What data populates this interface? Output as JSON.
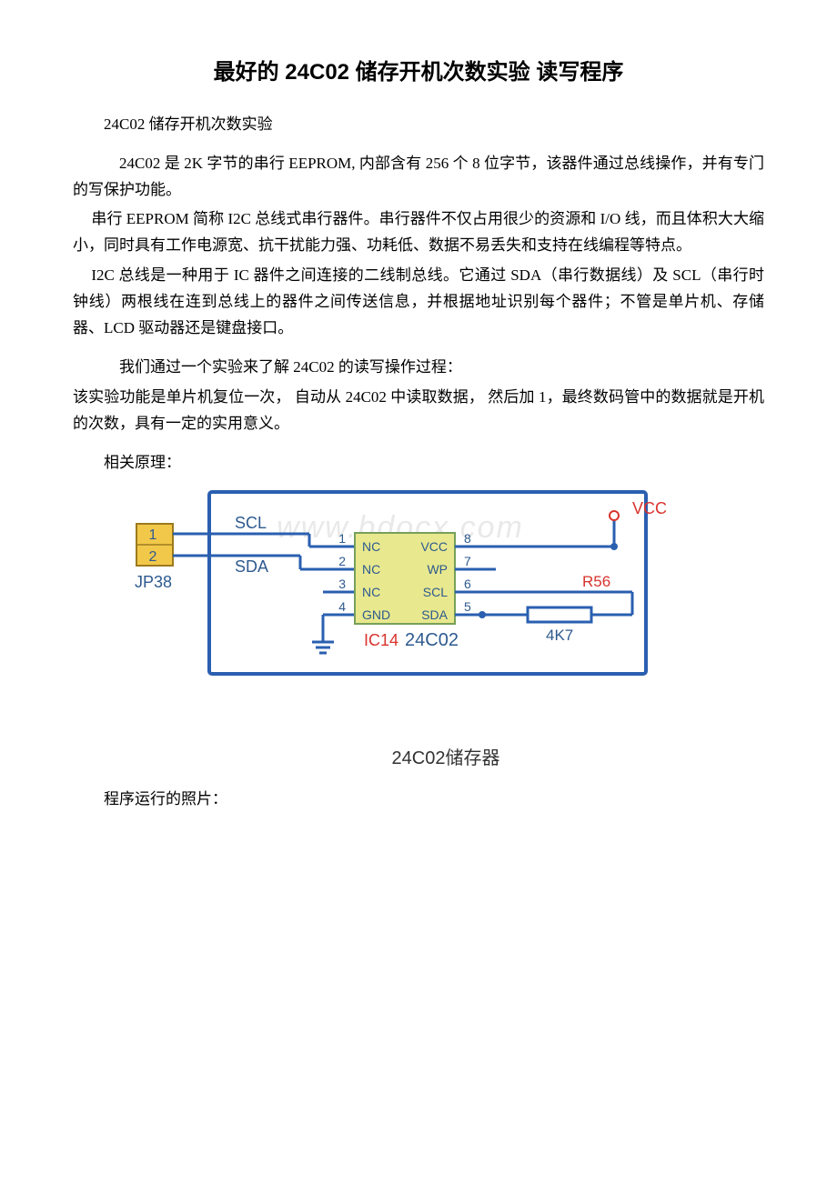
{
  "title": "最好的 24C02 储存开机次数实验 读写程序",
  "p1": "24C02 储存开机次数实验",
  "p2": "24C02 是 2K 字节的串行 EEPROM, 内部含有 256 个 8 位字节，该器件通过总线操作，并有专门的写保护功能。",
  "p3": "串行 EEPROM 简称 I2C 总线式串行器件。串行器件不仅占用很少的资源和 I/O 线，而且体积大大缩小，同时具有工作电源宽、抗干扰能力强、功耗低、数据不易丢失和支持在线编程等特点。",
  "p4": "I2C 总线是一种用于 IC 器件之间连接的二线制总线。它通过 SDA（串行数据线）及 SCL（串行时钟线）两根线在连到总线上的器件之间传送信息，并根据地址识别每个器件；不管是单片机、存储器、LCD 驱动器还是键盘接口。",
  "p5": "我们通过一个实验来了解 24C02 的读写操作过程：",
  "p6": "该实验功能是单片机复位一次， 自动从 24C02 中读取数据， 然后加 1，最终数码管中的数据就是开机的次数，具有一定的实用意义。",
  "p7": "相关原理：",
  "p8": "程序运行的照片：",
  "diagram": {
    "watermark": "www.bdocx.com",
    "caption": "24C02储存器",
    "connector": {
      "label": "JP38",
      "pin1": "1",
      "pin2": "2",
      "fill": "#f2c84b",
      "stroke": "#9c7a1e"
    },
    "lines": {
      "scl": "SCL",
      "sda": "SDA"
    },
    "ic": {
      "label_prefix": "IC14",
      "label_part": "24C02",
      "fill": "#e8e88e",
      "stroke": "#76a05a",
      "pins_left": [
        "NC",
        "NC",
        "NC",
        "GND"
      ],
      "pins_right": [
        "VCC",
        "WP",
        "SCL",
        "SDA"
      ],
      "pin_nums_left": [
        "1",
        "2",
        "3",
        "4"
      ],
      "pin_nums_right": [
        "8",
        "7",
        "6",
        "5"
      ]
    },
    "vcc": {
      "label": "VCC",
      "color": "#d9332d"
    },
    "resistor": {
      "ref": "R56",
      "value": "4K7",
      "ref_color": "#d9332d"
    },
    "colors": {
      "frame": "#2a5fb0",
      "text": "#2e5a8f",
      "wire": "#2a5fb0",
      "gnd": "#2a5fb0"
    }
  }
}
